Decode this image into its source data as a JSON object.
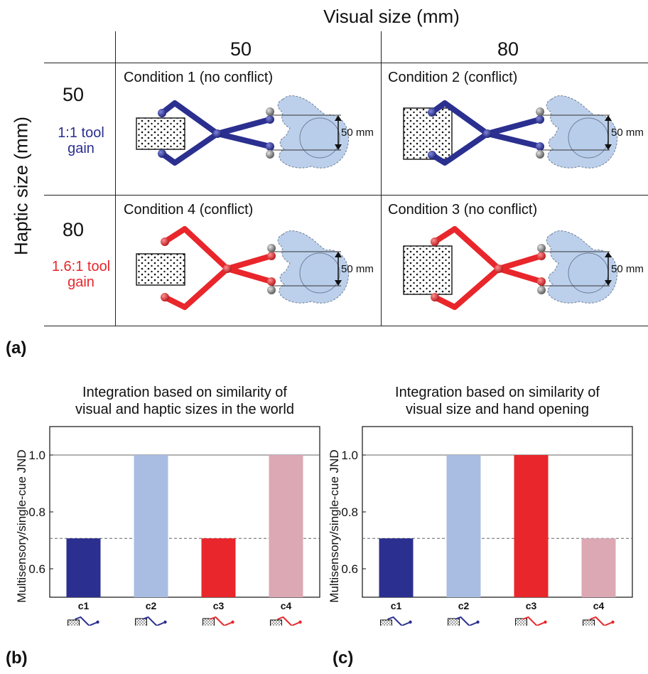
{
  "panel_a": {
    "label": "(a)",
    "col_axis_title": "Visual size (mm)",
    "row_axis_title": "Haptic size (mm)",
    "col_headers": [
      "50",
      "80"
    ],
    "rows": [
      {
        "value": "50",
        "gain": [
          "1:1 tool",
          "gain"
        ],
        "gain_color": "#2b2f8f"
      },
      {
        "value": "80",
        "gain": [
          "1.6:1 tool",
          "gain"
        ],
        "gain_color": "#e8262b"
      }
    ],
    "conditions": {
      "r1c1": "Condition 1 (no conflict)",
      "r1c2": "Condition 2 (conflict)",
      "r2c1": "Condition 4 (conflict)",
      "r2c2": "Condition 3 (no conflict)"
    },
    "measure_label": "50 mm"
  },
  "panel_b": {
    "label": "(b)",
    "title": [
      "Integration based on similarity of",
      "visual and haptic sizes in the world"
    ]
  },
  "panel_c": {
    "label": "(c)",
    "title": [
      "Integration based on similarity of",
      "visual size and hand opening"
    ]
  },
  "chart_data": [
    {
      "type": "bar",
      "title": "Integration based on similarity of visual and haptic sizes in the world",
      "ylabel": "Multisensory/single-cue JND",
      "categories": [
        "c1",
        "c2",
        "c3",
        "c4"
      ],
      "values": [
        0.707,
        1.0,
        0.707,
        1.0
      ],
      "colors": [
        "#2b2f8f",
        "#a9bde3",
        "#e8262b",
        "#dca8b4"
      ],
      "ylim": [
        0.5,
        1.1
      ],
      "yticks": [
        "0.6",
        "0.8",
        "1.0"
      ],
      "reference_lines": [
        {
          "y": 1.0,
          "style": "solid"
        },
        {
          "y": 0.707,
          "style": "dashed"
        }
      ]
    },
    {
      "type": "bar",
      "title": "Integration based on similarity of visual size and hand opening",
      "ylabel": "Multisensory/single-cue JND",
      "categories": [
        "c1",
        "c2",
        "c3",
        "c4"
      ],
      "values": [
        0.707,
        1.0,
        1.0,
        0.707
      ],
      "colors": [
        "#2b2f8f",
        "#a9bde3",
        "#e8262b",
        "#dca8b4"
      ],
      "ylim": [
        0.5,
        1.1
      ],
      "yticks": [
        "0.6",
        "0.8",
        "1.0"
      ],
      "reference_lines": [
        {
          "y": 1.0,
          "style": "solid"
        },
        {
          "y": 0.707,
          "style": "dashed"
        }
      ]
    }
  ]
}
